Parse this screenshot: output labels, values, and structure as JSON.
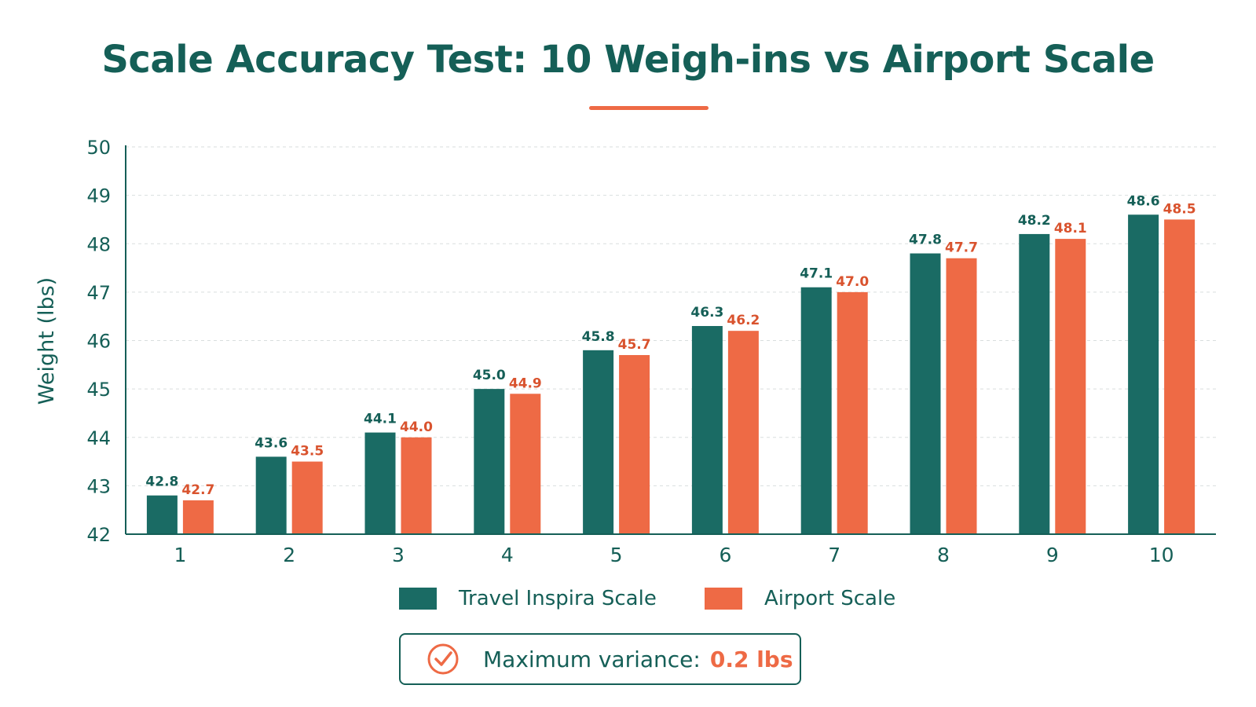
{
  "colors": {
    "primary": "#1a6b64",
    "accent": "#ee6a45",
    "text": "#155f57"
  },
  "footer": {
    "variance_label": "Maximum variance:",
    "variance_value": "0.2 lbs"
  },
  "chart_data": {
    "type": "bar",
    "title": "Scale Accuracy Test: 10 Weigh-ins vs Airport Scale",
    "xlabel": "",
    "ylabel": "Weight (lbs)",
    "ylim": [
      42,
      50
    ],
    "yticks": [
      42,
      43,
      44,
      45,
      46,
      47,
      48,
      49,
      50
    ],
    "categories": [
      "1",
      "2",
      "3",
      "4",
      "5",
      "6",
      "7",
      "8",
      "9",
      "10"
    ],
    "series": [
      {
        "name": "Travel Inspira Scale",
        "color": "#1a6b64",
        "values": [
          42.8,
          43.6,
          44.1,
          45.0,
          45.8,
          46.3,
          47.1,
          47.8,
          48.2,
          48.6
        ]
      },
      {
        "name": "Airport Scale",
        "color": "#ee6a45",
        "values": [
          42.7,
          43.5,
          44.0,
          44.9,
          45.7,
          46.2,
          47.0,
          47.7,
          48.1,
          48.5
        ]
      }
    ],
    "grid": true,
    "legend": "bottom"
  }
}
